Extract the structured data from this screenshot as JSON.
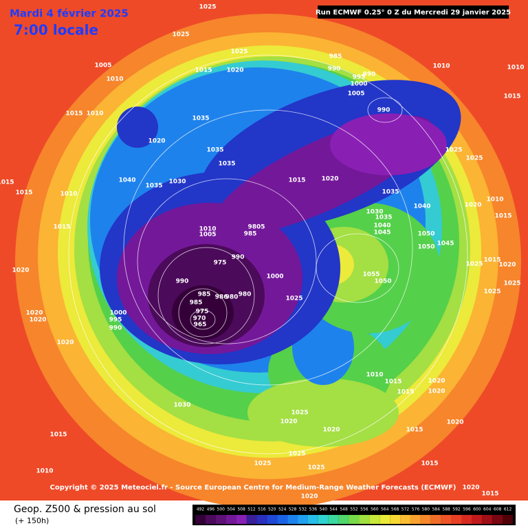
{
  "header": {
    "date": "Mardi 4 février 2025",
    "time": "7:00 locale",
    "run": "Run ECMWF 0.25° 0 Z du Mercredi 29 janvier 2025"
  },
  "map": {
    "pressure_labels": [
      1025,
      1025,
      1025,
      1005,
      1010,
      1015,
      1010,
      1020,
      1040,
      1035,
      1030,
      1035,
      1035,
      1035,
      1015,
      1020,
      985,
      990,
      995,
      990,
      1000,
      1005,
      990,
      1010,
      1010,
      1015,
      1025,
      1025,
      1015,
      1015,
      1010,
      1015,
      1020,
      1020,
      1020,
      1000,
      995,
      990,
      1020,
      1010,
      1005,
      990,
      985,
      985,
      975,
      970,
      965,
      986,
      980,
      980,
      975,
      990,
      9805,
      985,
      1015,
      1020,
      1035,
      1040,
      1030,
      1035,
      1040,
      1045,
      1050,
      1045,
      1050,
      1055,
      1050,
      1000,
      1025,
      1030,
      1015,
      1010,
      1010,
      1015,
      1015,
      1020,
      1020,
      1020,
      1015,
      1020,
      1020,
      1025,
      1025,
      1025,
      1025,
      1015,
      1020,
      1015,
      1020,
      1025,
      1025,
      1020,
      1015,
      1020,
      1025,
      1010,
      1015
    ]
  },
  "footer": {
    "copyright": "Copyright © 2025 Meteociel.fr - Source European Centre for Medium-Range Weather Forecasts (ECMWF)",
    "product": "Geop. Z500 & pression au sol",
    "lead": "(+ 150h)"
  },
  "scale": {
    "values": [
      492,
      496,
      500,
      504,
      508,
      512,
      516,
      520,
      524,
      528,
      532,
      536,
      540,
      544,
      548,
      552,
      556,
      560,
      564,
      568,
      572,
      576,
      580,
      584,
      588,
      592,
      596,
      600,
      604,
      608,
      612
    ],
    "colors": [
      "#35003a",
      "#4b0a5a",
      "#5e1275",
      "#74189a",
      "#8a1fb4",
      "#3a1e9a",
      "#2a2fbe",
      "#1f48d8",
      "#1a63e6",
      "#1c82ee",
      "#20a0f0",
      "#27bde8",
      "#2fd4d0",
      "#3bd9a0",
      "#50d66a",
      "#78da48",
      "#a0e040",
      "#c8e83a",
      "#e8ec38",
      "#f8d834",
      "#fbbd32",
      "#f9a22e",
      "#f6882b",
      "#f26e28",
      "#ee5526",
      "#e84024",
      "#d92a20",
      "#c21a1c",
      "#a00e18",
      "#7a0612",
      "#520008"
    ]
  }
}
